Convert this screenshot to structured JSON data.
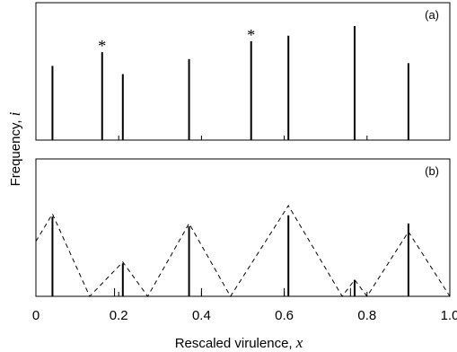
{
  "chart_data": [
    {
      "panel": "(a)",
      "type": "bar",
      "x": [
        0.04,
        0.16,
        0.21,
        0.37,
        0.52,
        0.61,
        0.77,
        0.9
      ],
      "values": [
        0.54,
        0.64,
        0.48,
        0.59,
        0.72,
        0.76,
        0.83,
        0.56
      ],
      "marked_x": [
        0.16,
        0.52
      ],
      "marker_symbol": "*",
      "ylim": [
        0,
        1
      ]
    },
    {
      "panel": "(b)",
      "type": "bar",
      "x": [
        0.04,
        0.19,
        0.21,
        0.37,
        0.4,
        0.6,
        0.61,
        0.76,
        0.77,
        0.9
      ],
      "values": [
        0.58,
        0.06,
        0.24,
        0.51,
        0.06,
        0.06,
        0.59,
        0.06,
        0.12,
        0.53
      ],
      "dashed_envelope": {
        "x": [
          0.0,
          0.04,
          0.13,
          0.21,
          0.27,
          0.37,
          0.47,
          0.61,
          0.74,
          0.77,
          0.8,
          0.9,
          1.0
        ],
        "y": [
          0.4,
          0.6,
          0.0,
          0.25,
          0.0,
          0.53,
          0.0,
          0.66,
          0.0,
          0.12,
          0.0,
          0.47,
          0.0
        ]
      },
      "ylim": [
        0,
        1
      ]
    }
  ],
  "axes": {
    "xlabel": "Rescaled virulence, ",
    "xlabel_var": "x",
    "ylabel": "Frequency, ",
    "ylabel_var": "i",
    "xlim": [
      0,
      1
    ],
    "xticks": [
      0,
      0.2,
      0.4,
      0.6,
      0.8,
      1.0
    ],
    "xtick_labels": [
      "0",
      "0.2",
      "0.4",
      "0.6",
      "0.8",
      "1.0"
    ]
  }
}
